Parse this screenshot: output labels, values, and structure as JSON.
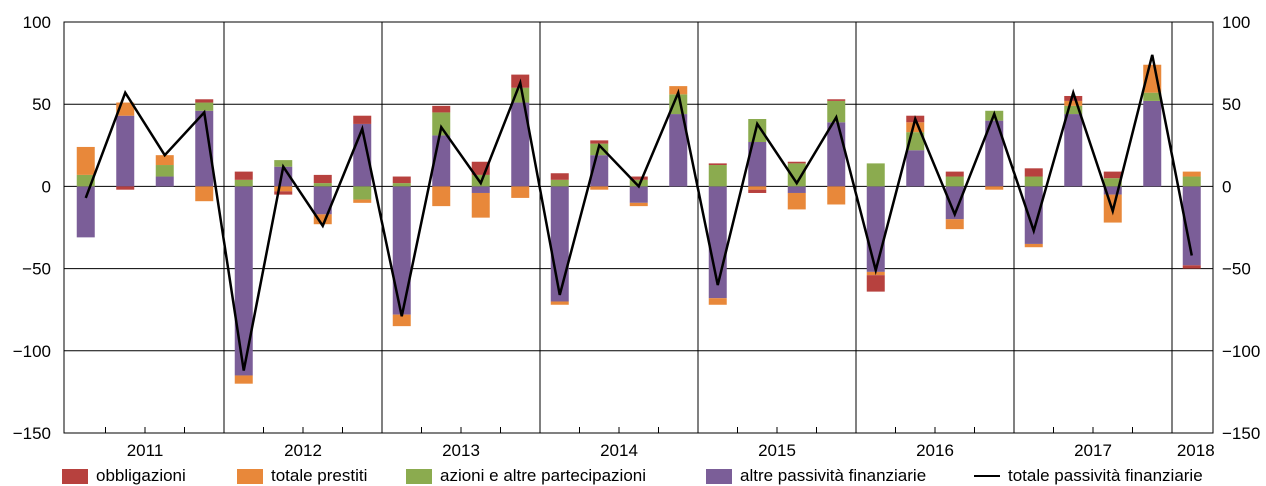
{
  "chart_data": {
    "type": "bar",
    "title": "",
    "xlabel": "",
    "ylabel": "",
    "ylim": [
      -150,
      100
    ],
    "yticks": [
      100,
      50,
      0,
      -50,
      -100,
      -150
    ],
    "ytick_labels": [
      "100",
      "50",
      "0",
      "−50",
      "−100",
      "−150"
    ],
    "year_labels": [
      "2011",
      "2012",
      "2013",
      "2014",
      "2015",
      "2016",
      "2017",
      "2018"
    ],
    "quarters_per_year": [
      4,
      4,
      4,
      4,
      4,
      4,
      4,
      1
    ],
    "grid": "horizontal",
    "legend_position": "bottom",
    "series": [
      {
        "name": "obbligazioni",
        "color": "#b7413e",
        "values": [
          0,
          -2,
          0,
          2,
          5,
          -2,
          5,
          5,
          4,
          4,
          8,
          8,
          4,
          2,
          2,
          0,
          1,
          -2,
          1,
          1,
          -10,
          4,
          3,
          0,
          5,
          3,
          4,
          0,
          -2
        ]
      },
      {
        "name": "totale prestiti",
        "color": "#e8883a",
        "values": [
          17,
          8,
          6,
          -9,
          -5,
          -3,
          -6,
          -2,
          -7,
          -12,
          -15,
          -7,
          -2,
          -2,
          -2,
          5,
          -4,
          -2,
          -10,
          -11,
          -2,
          6,
          -6,
          -2,
          -2,
          3,
          -17,
          17,
          3
        ]
      },
      {
        "name": "azioni e altre partecipazioni",
        "color": "#8bab4f",
        "values": [
          7,
          0,
          7,
          5,
          4,
          4,
          2,
          -8,
          2,
          14,
          7,
          9,
          4,
          7,
          4,
          12,
          13,
          14,
          14,
          13,
          14,
          11,
          6,
          6,
          6,
          5,
          5,
          5,
          6
        ]
      },
      {
        "name": "altre passività finanziarie",
        "color": "#7b5e98",
        "values": [
          -31,
          43,
          6,
          46,
          -115,
          12,
          -17,
          38,
          -78,
          31,
          -4,
          51,
          -70,
          19,
          -10,
          44,
          -68,
          27,
          -4,
          39,
          -52,
          22,
          -20,
          40,
          -35,
          44,
          -5,
          52,
          -48
        ]
      },
      {
        "name": "totale passività finanziarie",
        "color": "#000000",
        "type": "line",
        "values": [
          -7,
          57,
          19,
          45,
          -112,
          12,
          -24,
          35,
          -79,
          36,
          2,
          63,
          -66,
          25,
          0,
          57,
          -60,
          38,
          2,
          42,
          -51,
          41,
          -17,
          44,
          -27,
          57,
          -15,
          80,
          -42
        ]
      }
    ]
  }
}
